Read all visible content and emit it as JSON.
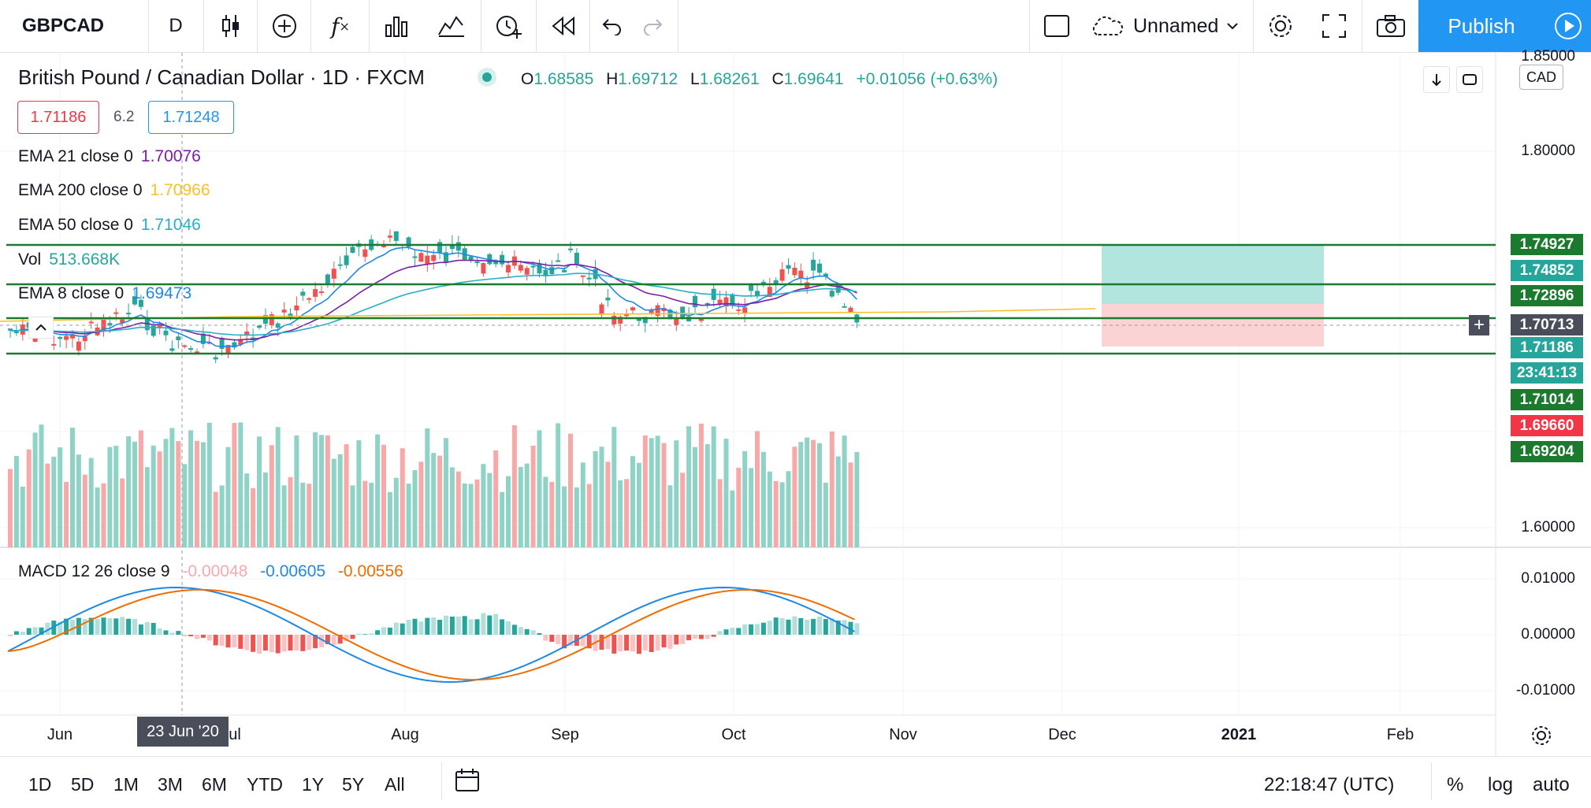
{
  "toolbar": {
    "symbol": "GBPCAD",
    "interval": "D",
    "layout_name": "Unnamed",
    "publish_label": "Publish"
  },
  "legend": {
    "title": "British Pound / Canadian Dollar · 1D · FXCM",
    "ohlc": {
      "o_label": "O",
      "o": "1.68585",
      "h_label": "H",
      "h": "1.69712",
      "l_label": "L",
      "l": "1.68261",
      "c_label": "C",
      "c": "1.69641",
      "change": "+0.01056 (+0.63%)"
    },
    "bid": "1.71186",
    "spread": "6.2",
    "ask": "1.71248",
    "indicators": [
      {
        "name": "EMA 21 close 0",
        "value": "1.70076",
        "color": "#7b1fa2"
      },
      {
        "name": "EMA 200 close 0",
        "value": "1.70966",
        "color": "#f9c02e"
      },
      {
        "name": "EMA 50 close 0",
        "value": "1.71046",
        "color": "#26b0c6"
      },
      {
        "name": "Vol",
        "value": "513.668K",
        "color": "#26a69a"
      },
      {
        "name": "EMA 8 close 0",
        "value": "1.69473",
        "color": "#1e88e5"
      }
    ],
    "macd": {
      "name": "MACD 12 26 close 9",
      "hist": "-0.00048",
      "macd": "-0.00605",
      "signal": "-0.00556"
    }
  },
  "price_scale": {
    "currency": "CAD",
    "ticks": [
      "1.85000",
      "1.80000",
      "1.60000"
    ],
    "labels": [
      {
        "text": "1.74927",
        "color": "#1b7a2e"
      },
      {
        "text": "1.74852",
        "color": "#26a69a"
      },
      {
        "text": "1.72896",
        "color": "#1b7a2e"
      },
      {
        "text": "1.70713",
        "color": "#4a4e5a"
      },
      {
        "text": "1.71186",
        "color": "#26a69a"
      },
      {
        "text": "23:41:13",
        "color": "#26a69a"
      },
      {
        "text": "1.71014",
        "color": "#1b7a2e"
      },
      {
        "text": "1.69660",
        "color": "#f23645"
      },
      {
        "text": "1.69204",
        "color": "#1b7a2e"
      }
    ],
    "macd_ticks": [
      "0.01000",
      "0.00000",
      "-0.01000"
    ]
  },
  "time_axis": {
    "labels": [
      "Jun",
      "Aug",
      "Sep",
      "Oct",
      "Nov",
      "Dec",
      "2021",
      "Feb"
    ],
    "partial_label": "ul",
    "crosshair_date": "23 Jun '20"
  },
  "bottom_bar": {
    "ranges": [
      "1D",
      "5D",
      "1M",
      "3M",
      "6M",
      "YTD",
      "1Y",
      "5Y",
      "All"
    ],
    "clock": "22:18:47 (UTC)",
    "percent": "%",
    "log": "log",
    "auto": "auto"
  },
  "colors": {
    "up": "#26a69a",
    "down": "#ef5350",
    "level_line": "#1b7a2e",
    "accent": "#2196f3"
  }
}
